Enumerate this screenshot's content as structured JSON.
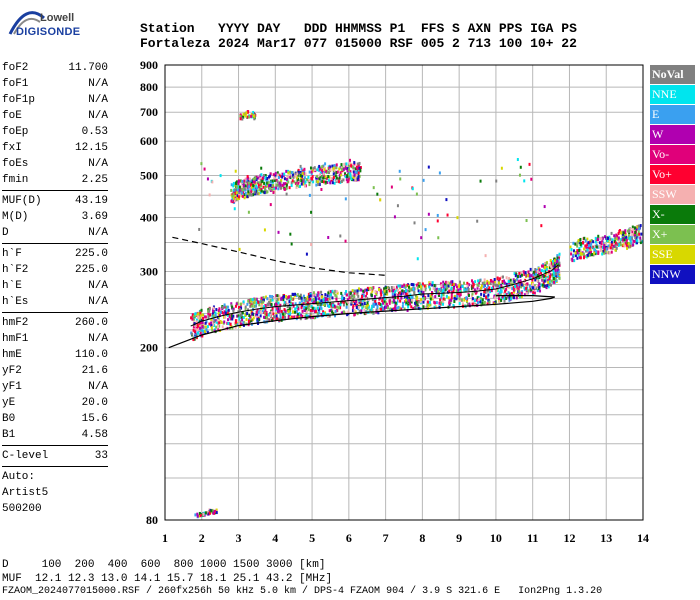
{
  "logo": {
    "line1": "Lowell",
    "line2": "DIGISONDE"
  },
  "header": {
    "line1": "Station   YYYY DAY   DDD HHMMSS P1  FFS S AXN PPS IGA PS",
    "line2": "Fortaleza 2024 Mar17 077 015000 RSF 005 2 713 100 10+ 22"
  },
  "params": {
    "group1": [
      {
        "k": "foF2",
        "v": "11.700"
      },
      {
        "k": "foF1",
        "v": "N/A"
      },
      {
        "k": "foF1p",
        "v": "N/A"
      },
      {
        "k": "foE",
        "v": "N/A"
      },
      {
        "k": "foEp",
        "v": "0.53"
      },
      {
        "k": "fxI",
        "v": "12.15"
      },
      {
        "k": "foEs",
        "v": "N/A"
      },
      {
        "k": "fmin",
        "v": "2.25"
      }
    ],
    "group2": [
      {
        "k": "MUF(D)",
        "v": "43.19"
      },
      {
        "k": "M(D)",
        "v": "3.69"
      },
      {
        "k": "D",
        "v": "N/A"
      }
    ],
    "group3": [
      {
        "k": "h`F",
        "v": "225.0"
      },
      {
        "k": "h`F2",
        "v": "225.0"
      },
      {
        "k": "h`E",
        "v": "N/A"
      },
      {
        "k": "h`Es",
        "v": "N/A"
      }
    ],
    "group4": [
      {
        "k": "hmF2",
        "v": "260.0"
      },
      {
        "k": "hmF1",
        "v": "N/A"
      },
      {
        "k": "hmE",
        "v": "110.0"
      },
      {
        "k": "yF2",
        "v": "21.6"
      },
      {
        "k": "yF1",
        "v": "N/A"
      },
      {
        "k": "yE",
        "v": "20.0"
      },
      {
        "k": "B0",
        "v": "15.6"
      },
      {
        "k": "B1",
        "v": "4.58"
      }
    ],
    "group5": [
      {
        "k": "C-level",
        "v": "33"
      }
    ],
    "auto": [
      "Auto:",
      "Artist5",
      "500200"
    ]
  },
  "legend": [
    {
      "label": "NoVal",
      "color": "#808080"
    },
    {
      "label": "NNE",
      "color": "#00e5ee"
    },
    {
      "label": "E",
      "color": "#3aa0f0"
    },
    {
      "label": "W",
      "color": "#b000b0"
    },
    {
      "label": "Vo-",
      "color": "#e0007a"
    },
    {
      "label": "Vo+",
      "color": "#ff0030"
    },
    {
      "label": "SSW",
      "color": "#f5b0b0"
    },
    {
      "label": "X-",
      "color": "#0a7a0a"
    },
    {
      "label": "X+",
      "color": "#7cc050"
    },
    {
      "label": "SSE",
      "color": "#d8d800"
    },
    {
      "label": "NNW",
      "color": "#1010c0"
    }
  ],
  "footer": {
    "line1": "D     100  200  400  600  800 1000 1500 3000 [km]",
    "line2": "MUF  12.1 12.3 13.0 14.1 15.7 18.1 25.1 43.2 [MHz]",
    "line3": "FZAOM_2024077015000.RSF / 260fx256h 50 kHz 5.0 km / DPS-4 FZAOM 904 / 3.9 S 321.6 E   Ion2Png 1.3.20"
  },
  "chart_data": {
    "type": "scatter",
    "title": "",
    "xlabel": "",
    "ylabel": "",
    "xlim": [
      1,
      14
    ],
    "ylim": [
      80,
      900
    ],
    "y_scale": "log",
    "x_ticks": [
      1,
      2,
      3,
      4,
      5,
      6,
      7,
      8,
      9,
      10,
      11,
      12,
      13,
      14
    ],
    "y_ticks": [
      80,
      200,
      300,
      400,
      500,
      600,
      700,
      800,
      900
    ],
    "grid": true,
    "series": [
      {
        "name": "",
        "kind": "trace",
        "color": "#e0007a",
        "points": [
          [
            1.7,
            220
          ],
          [
            2,
            226
          ],
          [
            2.5,
            232
          ],
          [
            3,
            237
          ],
          [
            3.5,
            241
          ],
          [
            4,
            244
          ],
          [
            4.5,
            246
          ],
          [
            5,
            248
          ],
          [
            5.5,
            250
          ],
          [
            6,
            252
          ],
          [
            6.5,
            254
          ],
          [
            7,
            256
          ],
          [
            7.5,
            258
          ],
          [
            8,
            261
          ],
          [
            8.5,
            262
          ],
          [
            9,
            263
          ],
          [
            9.5,
            265
          ],
          [
            10,
            268
          ],
          [
            10.5,
            275
          ],
          [
            11,
            283
          ],
          [
            11.5,
            295
          ],
          [
            11.7,
            305
          ]
        ]
      },
      {
        "name": "",
        "kind": "scatter-upper",
        "color": "#e0007a",
        "points": [
          [
            2.8,
            450
          ],
          [
            3,
            460
          ],
          [
            3.3,
            470
          ],
          [
            3.6,
            475
          ],
          [
            4,
            480
          ],
          [
            4.5,
            490
          ],
          [
            5,
            495
          ],
          [
            5.5,
            500
          ],
          [
            6,
            505
          ],
          [
            6.3,
            510
          ]
        ]
      },
      {
        "name": "",
        "kind": "scatter-right",
        "color": "#00e5ee",
        "points": [
          [
            12,
            330
          ],
          [
            12.5,
            340
          ],
          [
            13,
            345
          ],
          [
            13.5,
            355
          ],
          [
            13.9,
            365
          ]
        ]
      },
      {
        "name": "",
        "kind": "scatter-low",
        "color": "#b000b0",
        "points": [
          [
            1.8,
            82
          ],
          [
            2,
            83
          ],
          [
            2.2,
            84
          ],
          [
            2.4,
            84
          ]
        ]
      }
    ],
    "profile_line": [
      [
        1.1,
        200
      ],
      [
        2,
        214
      ],
      [
        3,
        225
      ],
      [
        4,
        231
      ],
      [
        5,
        236
      ],
      [
        6,
        240
      ],
      [
        7,
        243
      ],
      [
        8,
        246
      ],
      [
        9,
        249
      ],
      [
        10,
        252
      ],
      [
        11,
        256
      ],
      [
        11.5,
        260
      ],
      [
        11.6,
        262
      ],
      [
        11,
        264
      ],
      [
        10,
        264
      ]
    ],
    "dashed_line": [
      [
        1.2,
        360
      ],
      [
        2,
        348
      ],
      [
        3,
        333
      ],
      [
        4,
        318
      ],
      [
        5,
        306
      ],
      [
        6,
        298
      ],
      [
        7,
        294
      ]
    ]
  }
}
